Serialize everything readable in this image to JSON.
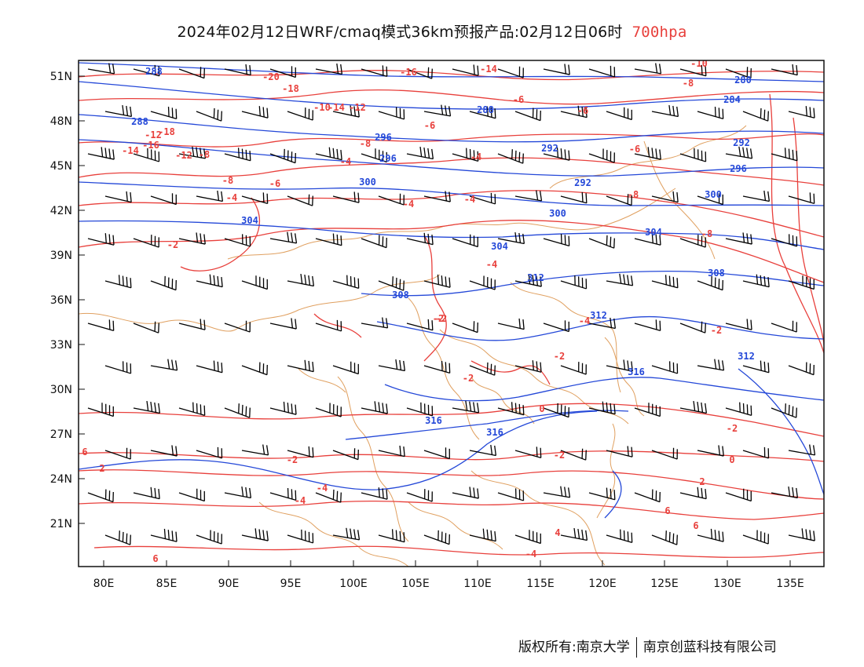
{
  "title": {
    "main": "2024年02月12日WRF/cmaq模式36km预报产品:02月12日06时",
    "level": "700hpa"
  },
  "colors": {
    "temperature": "#e8403c",
    "geopotential": "#2448d8",
    "border": "#e0a060",
    "wind": "#000000"
  },
  "axes": {
    "x_ticks": [
      "80E",
      "85E",
      "90E",
      "95E",
      "100E",
      "105E",
      "110E",
      "115E",
      "120E",
      "125E",
      "130E",
      "135E"
    ],
    "y_ticks": [
      "51N",
      "48N",
      "45N",
      "42N",
      "39N",
      "36N",
      "33N",
      "30N",
      "27N",
      "24N",
      "21N"
    ]
  },
  "labels": {
    "temperature": [
      "-10",
      "-20",
      "-16",
      "-14",
      "-12",
      "-8",
      "-18",
      "-14",
      "-12",
      "-10",
      "-6",
      "-8",
      "-6",
      "-18",
      "-16",
      "-14",
      "-12",
      "-6",
      "-8",
      "-4",
      "-4",
      "-4",
      "-8",
      "-6",
      "-2",
      "-4",
      "-4",
      "-8",
      "-2",
      "-4",
      "-6",
      "-8",
      "-2",
      "-4",
      "-2",
      "-2",
      "0",
      "-2",
      "-2",
      "-4",
      "-2",
      "0",
      "2",
      "2",
      "-4",
      "6",
      "4",
      "6",
      "6",
      "6",
      "-2",
      "-4",
      "2"
    ],
    "geopotential": [
      "288",
      "280",
      "284",
      "288",
      "296",
      "288",
      "292",
      "292",
      "296",
      "300",
      "292",
      "296",
      "304",
      "304",
      "300",
      "304",
      "300",
      "308",
      "308",
      "312",
      "312",
      "316",
      "312",
      "316",
      "316"
    ]
  },
  "footer": {
    "left": "版权所有:南京大学",
    "right": "南京创蓝科技有限公司"
  }
}
